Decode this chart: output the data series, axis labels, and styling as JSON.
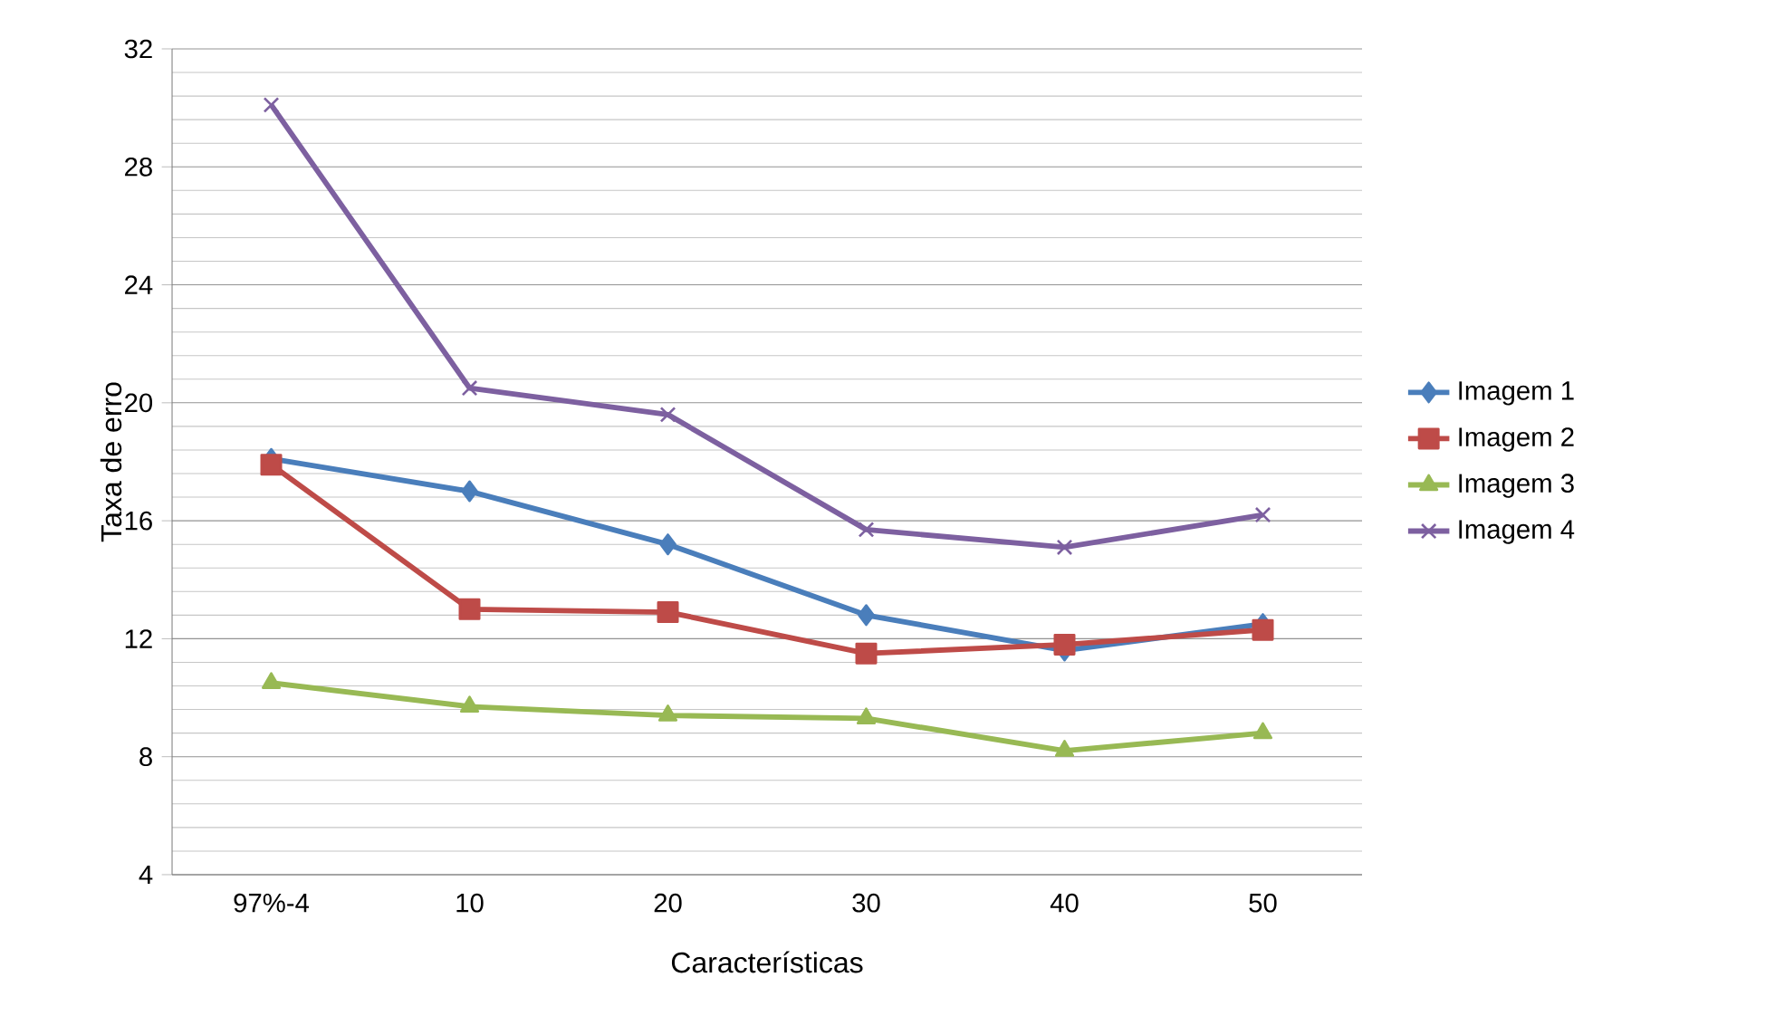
{
  "chart_data": {
    "type": "line",
    "xlabel": "Características",
    "ylabel": "Taxa de erro",
    "categories": [
      "97%-4",
      "10",
      "20",
      "30",
      "40",
      "50"
    ],
    "series": [
      {
        "name": "Imagem 1",
        "color": "#4a7ebb",
        "marker": "diamond",
        "values": [
          18.1,
          17.0,
          15.2,
          12.8,
          11.6,
          12.5
        ]
      },
      {
        "name": "Imagem 2",
        "color": "#be4b48",
        "marker": "square",
        "values": [
          17.9,
          13.0,
          12.9,
          11.5,
          11.8,
          12.3
        ]
      },
      {
        "name": "Imagem 3",
        "color": "#98b954",
        "marker": "triangle",
        "values": [
          10.5,
          9.7,
          9.4,
          9.3,
          8.2,
          8.8
        ]
      },
      {
        "name": "Imagem 4",
        "color": "#7d60a0",
        "marker": "cross",
        "values": [
          30.1,
          20.5,
          19.6,
          15.7,
          15.1,
          16.2
        ]
      }
    ],
    "ylim": [
      4,
      32
    ],
    "yticks": [
      4,
      8,
      12,
      16,
      20,
      24,
      28,
      32
    ],
    "grid": "y",
    "legend": "right",
    "line_style": "solid"
  }
}
